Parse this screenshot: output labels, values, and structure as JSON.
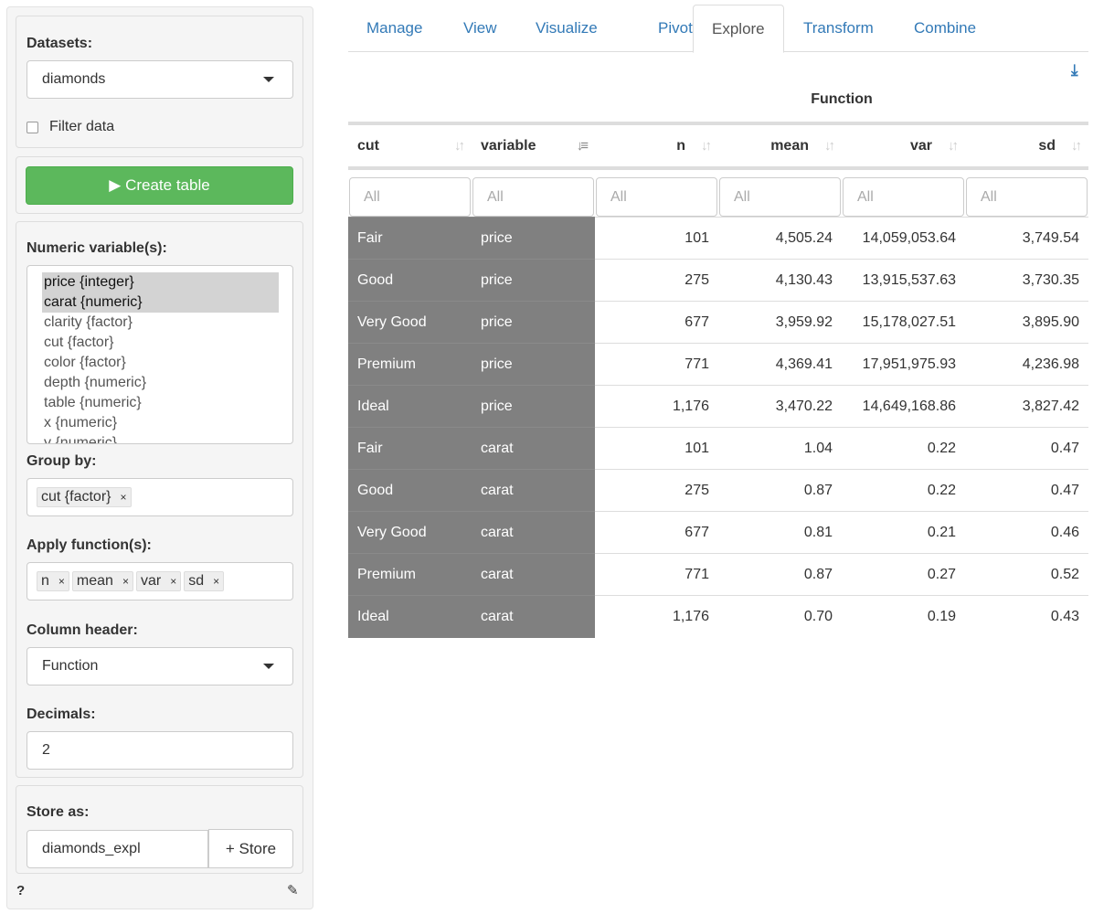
{
  "sidebar": {
    "datasets_label": "Datasets:",
    "dataset": "diamonds",
    "filter_label": "Filter data",
    "create_table": "▶ Create table",
    "numeric_label": "Numeric variable(s):",
    "numeric_options": [
      "price {integer}",
      "carat {numeric}",
      "clarity {factor}",
      "cut {factor}",
      "color {factor}",
      "depth {numeric}",
      "table {numeric}",
      "x {numeric}",
      "y {numeric}"
    ],
    "numeric_selected": [
      "price {integer}",
      "carat {numeric}"
    ],
    "group_label": "Group by:",
    "group_chips": [
      "cut {factor}"
    ],
    "apply_label": "Apply function(s):",
    "apply_chips": [
      "n",
      "mean",
      "var",
      "sd"
    ],
    "colheader_label": "Column header:",
    "colheader": "Function",
    "decimals_label": "Decimals:",
    "decimals": "2",
    "store_label": "Store as:",
    "store_value": "diamonds_expl",
    "store_button": "+ Store",
    "help": "?"
  },
  "tabs": [
    "Manage",
    "View",
    "Visualize",
    "Pivot",
    "Explore",
    "Transform",
    "Combine"
  ],
  "active_tab": "Explore",
  "table": {
    "group_header": "Function",
    "columns": [
      "cut",
      "variable",
      "n",
      "mean",
      "var",
      "sd"
    ],
    "filter_placeholder": "All",
    "rows": [
      [
        "Fair",
        "price",
        "101",
        "4,505.24",
        "14,059,053.64",
        "3,749.54"
      ],
      [
        "Good",
        "price",
        "275",
        "4,130.43",
        "13,915,537.63",
        "3,730.35"
      ],
      [
        "Very Good",
        "price",
        "677",
        "3,959.92",
        "15,178,027.51",
        "3,895.90"
      ],
      [
        "Premium",
        "price",
        "771",
        "4,369.41",
        "17,951,975.93",
        "4,236.98"
      ],
      [
        "Ideal",
        "price",
        "1,176",
        "3,470.22",
        "14,649,168.86",
        "3,827.42"
      ],
      [
        "Fair",
        "carat",
        "101",
        "1.04",
        "0.22",
        "0.47"
      ],
      [
        "Good",
        "carat",
        "275",
        "0.87",
        "0.22",
        "0.47"
      ],
      [
        "Very Good",
        "carat",
        "677",
        "0.81",
        "0.21",
        "0.46"
      ],
      [
        "Premium",
        "carat",
        "771",
        "0.87",
        "0.27",
        "0.52"
      ],
      [
        "Ideal",
        "carat",
        "1,176",
        "0.70",
        "0.19",
        "0.43"
      ]
    ]
  },
  "colors": {
    "accent": "#337ab7",
    "create": "#5cb85c",
    "group_cell": "#808080"
  }
}
